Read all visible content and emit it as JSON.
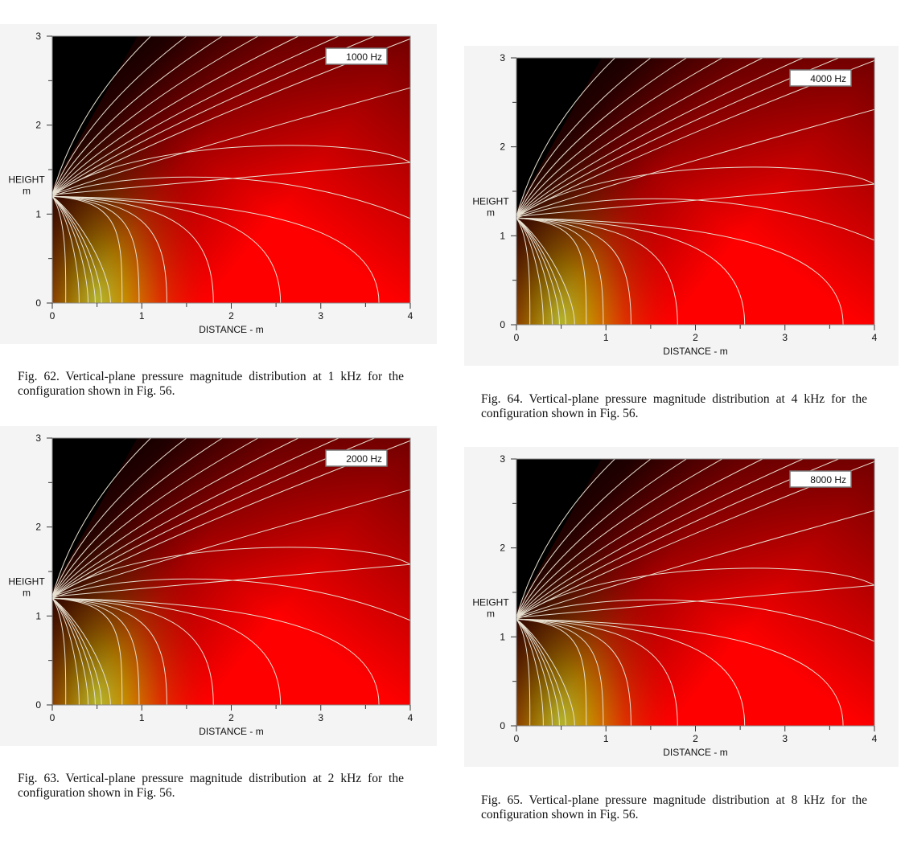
{
  "chart_data": [
    {
      "type": "heatmap",
      "figure": "Fig. 62",
      "label": "1000 Hz",
      "xlabel": "DISTANCE - m",
      "ylabel": "HEIGHT",
      "yunit": "m",
      "xlim": [
        0,
        4
      ],
      "ylim": [
        0,
        3
      ],
      "xticks": [
        "0",
        "1",
        "2",
        "3",
        "4"
      ],
      "yticks": [
        "0",
        "1",
        "2",
        "3"
      ],
      "source_height": 1.2,
      "beam_bottom_x": 0.5
    },
    {
      "type": "heatmap",
      "figure": "Fig. 63",
      "label": "2000 Hz",
      "xlabel": "DISTANCE - m",
      "ylabel": "HEIGHT",
      "yunit": "m",
      "xlim": [
        0,
        4
      ],
      "ylim": [
        0,
        3
      ],
      "xticks": [
        "0",
        "1",
        "2",
        "3",
        "4"
      ],
      "yticks": [
        "0",
        "1",
        "2",
        "3"
      ],
      "source_height": 1.2,
      "beam_bottom_x": 0.5
    },
    {
      "type": "heatmap",
      "figure": "Fig. 64",
      "label": "4000 Hz",
      "xlabel": "DISTANCE - m",
      "ylabel": "HEIGHT",
      "yunit": "m",
      "xlim": [
        0,
        4
      ],
      "ylim": [
        0,
        3
      ],
      "xticks": [
        "0",
        "1",
        "2",
        "3",
        "4"
      ],
      "yticks": [
        "0",
        "1",
        "2",
        "3"
      ],
      "source_height": 1.2,
      "beam_bottom_x": 0.5
    },
    {
      "type": "heatmap",
      "figure": "Fig. 65",
      "label": "8000 Hz",
      "xlabel": "DISTANCE - m",
      "ylabel": "HEIGHT",
      "yunit": "m",
      "xlim": [
        0,
        4
      ],
      "ylim": [
        0,
        3
      ],
      "xticks": [
        "0",
        "1",
        "2",
        "3",
        "4"
      ],
      "yticks": [
        "0",
        "1",
        "2",
        "3"
      ],
      "source_height": 1.2,
      "beam_bottom_x": 0.5
    }
  ],
  "captions": [
    "Fig. 62. Vertical-plane pressure magnitude distribution at 1 kHz for the configuration shown in Fig. 56.",
    "Fig. 63. Vertical-plane pressure magnitude distribution at 2 kHz for the configuration shown in Fig. 56.",
    "Fig. 64. Vertical-plane pressure magnitude distribution at 4 kHz for the configuration shown in Fig. 56.",
    "Fig. 65. Vertical-plane pressure magnitude distribution at 8 kHz for the configuration shown in Fig. 56."
  ],
  "colors": {
    "low": "#000000",
    "mid": "#ff0000",
    "high": "#ffff30",
    "contour": "#e8e0d0"
  }
}
